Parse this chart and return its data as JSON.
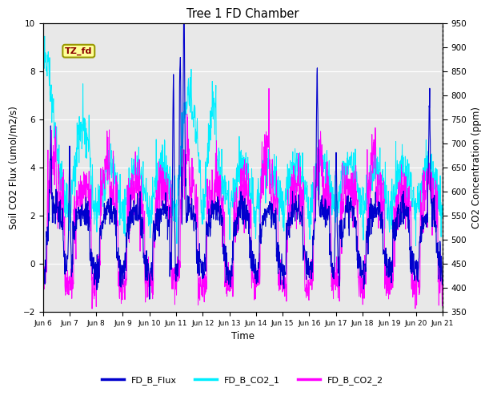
{
  "title": "Tree 1 FD Chamber",
  "ylabel_left": "Soil CO2 Flux (umol/m2/s)",
  "ylabel_right": "CO2 Concentration (ppm)",
  "xlabel": "Time",
  "ylim_left": [
    -2,
    10
  ],
  "ylim_right": [
    350,
    950
  ],
  "yticks_left": [
    -2,
    0,
    2,
    4,
    6,
    8,
    10
  ],
  "yticks_right": [
    350,
    400,
    450,
    500,
    550,
    600,
    650,
    700,
    750,
    800,
    850,
    900,
    950
  ],
  "xticklabels": [
    "Jun 6",
    "Jun 7",
    "Jun 8",
    "Jun 9",
    "Jun 10",
    "Jun 11",
    "Jun 12",
    "Jun 13",
    "Jun 14",
    "Jun 15",
    "Jun 16",
    "Jun 17",
    "Jun 18",
    "Jun 19",
    "Jun 20",
    "Jun 21"
  ],
  "color_flux": "#0000CD",
  "color_co2_1": "#00EEFF",
  "color_co2_2": "#FF00FF",
  "legend_labels": [
    "FD_B_Flux",
    "FD_B_CO2_1",
    "FD_B_CO2_2"
  ],
  "annotation_text": "TZ_fd",
  "bg_color": "#E8E8E8",
  "grid_color": "white",
  "n_days": 15,
  "n_per_day": 96
}
